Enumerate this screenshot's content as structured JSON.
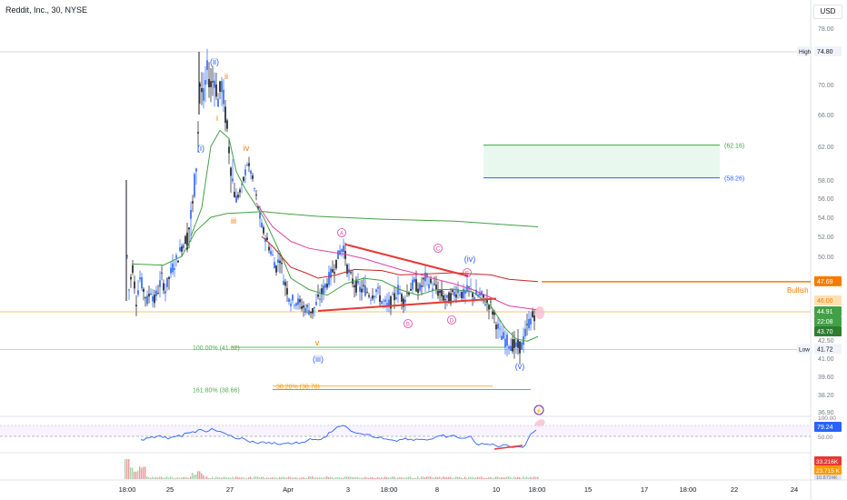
{
  "header": {
    "symbol_title": "Reddit, Inc., 30, NYSE",
    "currency": "USD"
  },
  "chart_data": {
    "type": "candlestick",
    "title": "Reddit, Inc., 30, NYSE",
    "price_axis": {
      "ticks": [
        "78.00",
        "74.80",
        "70.00",
        "66.00",
        "62.00",
        "58.00",
        "56.00",
        "54.00",
        "52.00",
        "50.00",
        "48.00",
        "46.00",
        "44.91",
        "42.50",
        "41.00",
        "39.60",
        "38.20",
        "36.90"
      ],
      "ylim": [
        36.0,
        80.0
      ]
    },
    "time_axis": {
      "ticks": [
        "18:00",
        "25",
        "27",
        "Apr",
        "3",
        "18:00",
        "8",
        "10",
        "18:00",
        "15",
        "17",
        "18:00",
        "22",
        "24"
      ]
    },
    "price_badges": [
      {
        "label": "High",
        "value": "74.80"
      },
      {
        "label": "Low",
        "value": "41.72"
      },
      {
        "label": "",
        "value": "47.69"
      },
      {
        "label": "",
        "value": "46.00"
      },
      {
        "label": "",
        "value": "44.91"
      },
      {
        "label": "",
        "value": "22:08"
      },
      {
        "label": "",
        "value": "43.70"
      }
    ],
    "wave_labels": [
      "(i)",
      "(ii)",
      "ii",
      "i",
      "iv",
      "iii",
      "(iii)",
      "v",
      "(iv)",
      "(v)",
      "A",
      "B",
      "C",
      "D",
      "E"
    ],
    "fib_labels": [
      {
        "text": "100.00% (41.82)",
        "price": 41.82
      },
      {
        "text": "161.80% (38.66)",
        "price": 38.66
      },
      {
        "text": "38.20% (38.78)",
        "price": 38.78
      }
    ],
    "target_box": {
      "top_label": "(62.16)",
      "bottom_label": "(58.26)",
      "top": 62.16,
      "bottom": 58.26
    },
    "bullish_label": "Bullish",
    "rsi": {
      "ticks": [
        "100.00",
        "79.24",
        "50.00"
      ],
      "value": "79.24"
    },
    "volume": {
      "badges": [
        "33.216K",
        "23.715 K",
        "10.8724K"
      ]
    },
    "colors": {
      "up": "#2962ff",
      "down": "#131722",
      "ma_green": "#43a047",
      "ma_red": "#c62828",
      "ma_pink": "#e040a0",
      "triangle": "#e53935",
      "fib": "#4caf50",
      "orange": "#f57c00",
      "target_fill": "#e8f8ee",
      "target_line": "#43a047",
      "rsi_line": "#2962ff",
      "price_badge": "#2962ff"
    }
  }
}
